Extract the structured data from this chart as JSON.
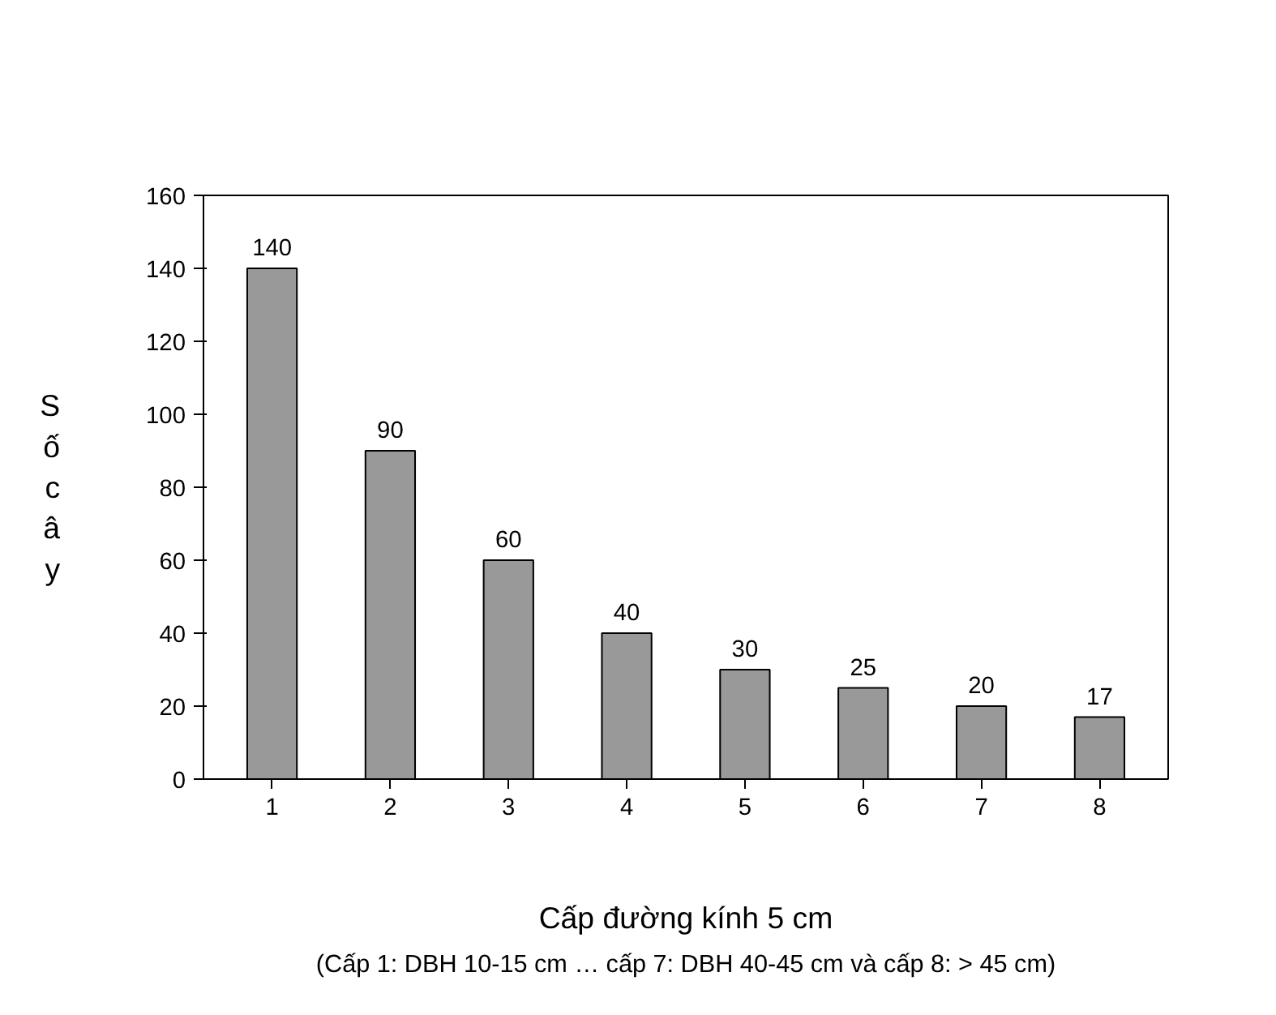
{
  "chart_data": {
    "type": "bar",
    "categories": [
      "1",
      "2",
      "3",
      "4",
      "5",
      "6",
      "7",
      "8"
    ],
    "values": [
      140,
      90,
      60,
      40,
      30,
      25,
      20,
      17
    ],
    "color": "#999999",
    "ylim": [
      0,
      160
    ],
    "yticks": [
      0,
      20,
      40,
      60,
      80,
      100,
      120,
      140,
      160
    ],
    "ylabel": "Số cây",
    "xlabel": "Cấp đường kính 5 cm",
    "annotations": [
      "(Cấp 1: DBH 10-15 cm … cấp 7: DBH 40-45 cm và cấp 8: > 45 cm)"
    ],
    "data_labels": true,
    "grid": false
  }
}
